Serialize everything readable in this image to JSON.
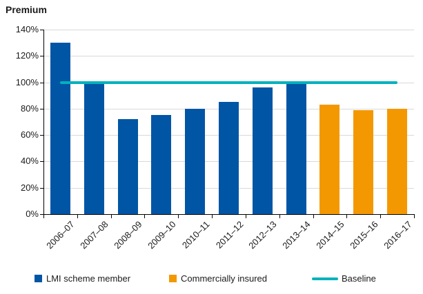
{
  "chart_data": {
    "type": "bar",
    "title": "Premium",
    "categories": [
      "2006–07",
      "2007–08",
      "2008–09",
      "2009–10",
      "2010–11",
      "2011–12",
      "2012–13",
      "2013–14",
      "2014–15",
      "2015–16",
      "2016–17"
    ],
    "series": [
      {
        "name": "LMI scheme member",
        "type": "bar",
        "color": "#0055A5",
        "values": [
          130,
          99,
          72,
          75,
          80,
          85,
          96,
          99,
          null,
          null,
          null
        ]
      },
      {
        "name": "Commercially insured",
        "type": "bar",
        "color": "#F39800",
        "values": [
          null,
          null,
          null,
          null,
          null,
          null,
          null,
          null,
          83,
          79,
          80
        ]
      },
      {
        "name": "Baseline",
        "type": "line",
        "color": "#00B2BD",
        "values": [
          100,
          100,
          100,
          100,
          100,
          100,
          100,
          100,
          100,
          100,
          100
        ]
      }
    ],
    "ylim": [
      0,
      140
    ],
    "ytick_step": 20,
    "ytick_format": "percent",
    "grid": true,
    "legend_position": "bottom",
    "colors": {
      "gridline": "#D9D9D9",
      "axis": "#000000",
      "text": "#1A1A1A"
    }
  }
}
